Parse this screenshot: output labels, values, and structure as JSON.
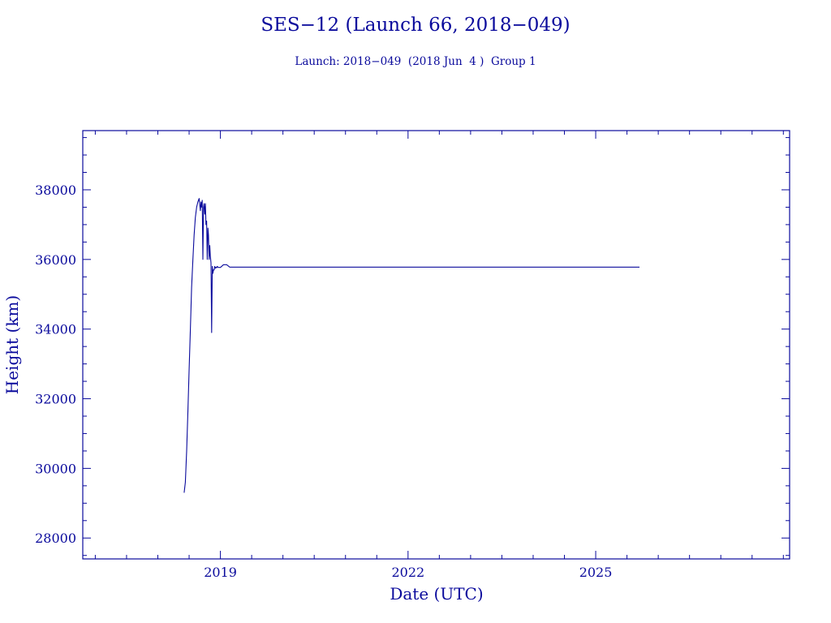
{
  "chart_data": {
    "type": "line",
    "title": "SES−12 (Launch 66, 2018−049)",
    "subtitle": "Launch: 2018−049  (2018 Jun  4 )  Group 1",
    "xlabel": "Date (UTC)",
    "ylabel": "Height (km)",
    "xlim": [
      2016.8,
      2028.1
    ],
    "ylim": [
      27400,
      39700
    ],
    "x_ticks": [
      2019,
      2022,
      2025
    ],
    "x_tick_labels": [
      "2019",
      "2022",
      "2025"
    ],
    "y_ticks": [
      28000,
      30000,
      32000,
      34000,
      36000,
      38000
    ],
    "y_tick_labels": [
      "28000",
      "30000",
      "32000",
      "34000",
      "36000",
      "38000"
    ],
    "grid": false,
    "series": [
      {
        "x": [
          2018.42,
          2018.44,
          2018.46,
          2018.48,
          2018.5,
          2018.52,
          2018.54,
          2018.56,
          2018.58,
          2018.6,
          2018.62,
          2018.64,
          2018.66,
          2018.68,
          2018.69,
          2018.7,
          2018.71,
          2018.72,
          2018.73,
          2018.74,
          2018.75,
          2018.76,
          2018.77,
          2018.78,
          2018.79,
          2018.8,
          2018.81,
          2018.82,
          2018.83,
          2018.84,
          2018.85,
          2018.86,
          2018.87,
          2018.88,
          2018.89,
          2018.9,
          2018.91,
          2018.92,
          2018.93,
          2018.94,
          2018.95,
          2018.96,
          2018.97,
          2019.0,
          2019.05,
          2019.1,
          2019.15,
          2019.2,
          2019.25,
          2019.3,
          2020.5,
          2022.0,
          2023.5,
          2024.5,
          2025.0,
          2025.7
        ],
        "y": [
          29300,
          29600,
          30500,
          31600,
          32800,
          34000,
          35200,
          36000,
          36700,
          37200,
          37500,
          37650,
          37750,
          37400,
          37650,
          37500,
          37700,
          36000,
          37500,
          37600,
          37300,
          37600,
          37000,
          37100,
          36000,
          36900,
          36700,
          36000,
          36400,
          36100,
          35900,
          33900,
          35800,
          35600,
          35700,
          35700,
          35800,
          35750,
          35780,
          35760,
          35800,
          35780,
          35770,
          35770,
          35850,
          35850,
          35780,
          35780,
          35780,
          35780,
          35780,
          35780,
          35780,
          35780,
          35780,
          35780
        ]
      }
    ]
  }
}
